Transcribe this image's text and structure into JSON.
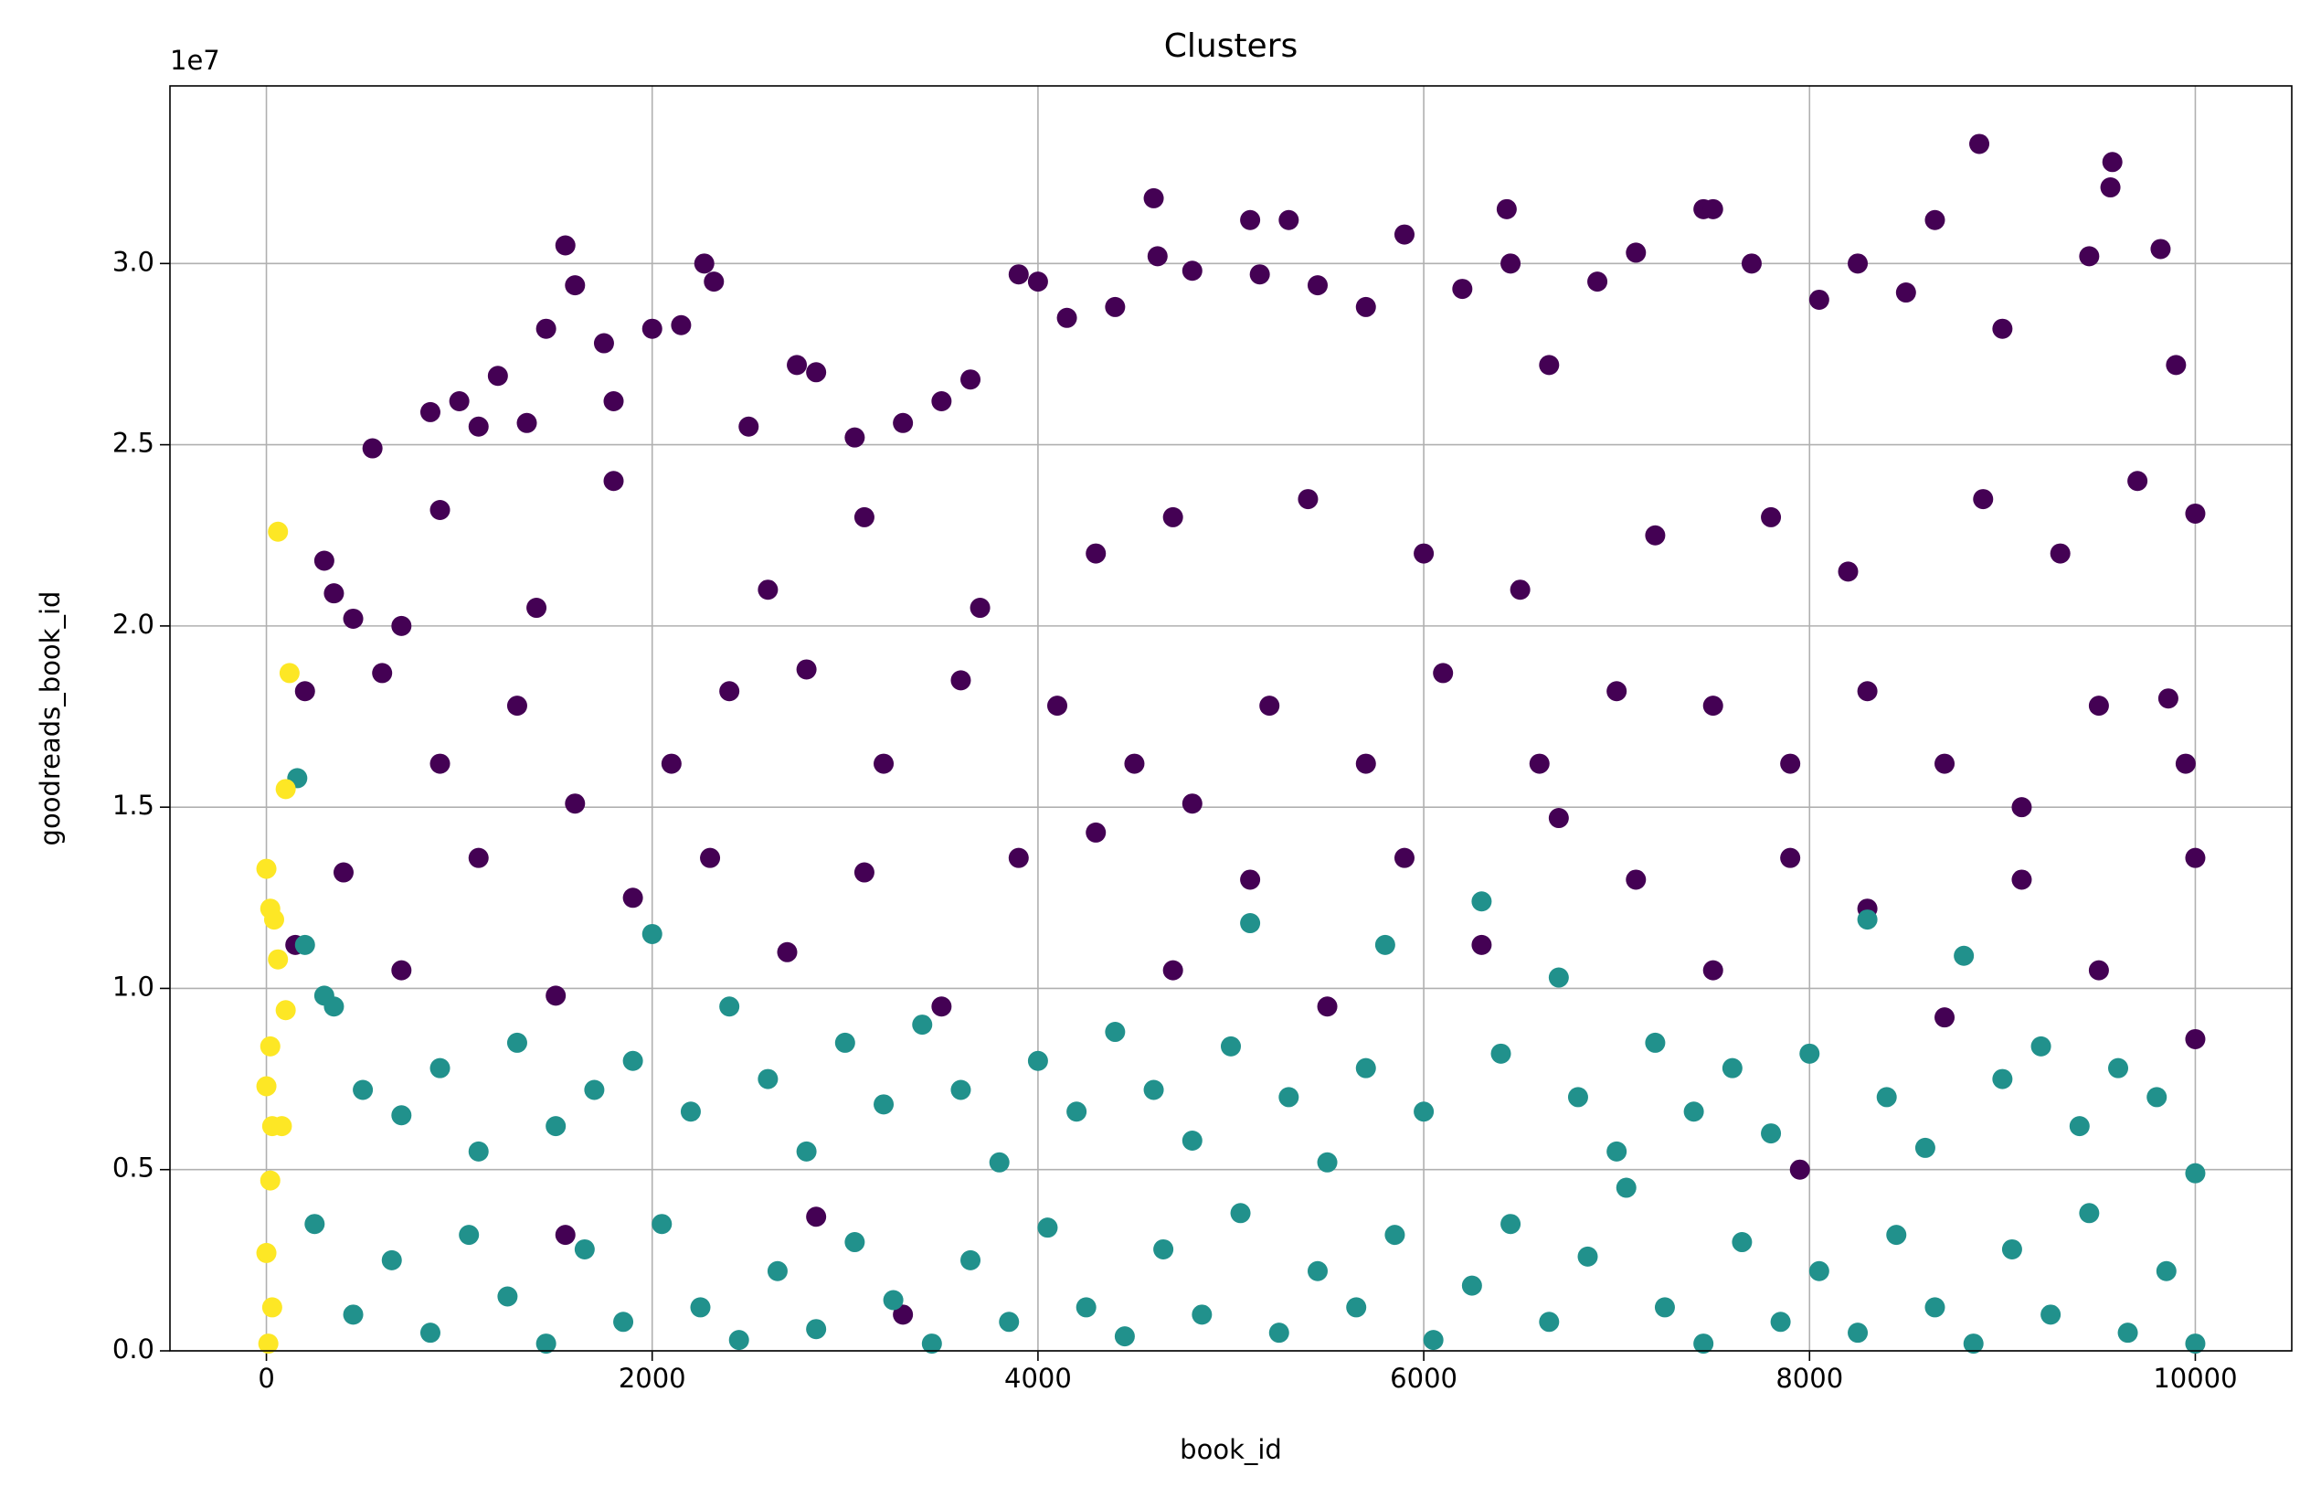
{
  "chart_data": {
    "type": "scatter",
    "title": "Clusters",
    "x_label": "book_id",
    "y_label": "goodreads_book_id",
    "y_offset_text": "1e7",
    "xlim": [
      -500,
      10500
    ],
    "xticks": [
      0,
      2000,
      4000,
      6000,
      8000,
      10000
    ],
    "ylim": [
      0,
      3.49
    ],
    "yticks": [
      {
        "value": 0,
        "label": "0.0"
      },
      0.5,
      {
        "value": 1,
        "label": "1.0"
      },
      1.5,
      {
        "value": 2,
        "label": "2.0"
      },
      2.5,
      {
        "value": 3,
        "label": "3.0"
      }
    ],
    "grid": true,
    "series": [
      {
        "color": "#440154",
        "x": [
          300,
          350,
          450,
          550,
          850,
          900,
          1000,
          1100,
          1200,
          1350,
          1450,
          1550,
          1600,
          1750,
          1800,
          2000,
          2150,
          2270,
          2320,
          2500,
          2750,
          2850,
          3050,
          3300,
          3500,
          3650,
          3900,
          4000,
          4150,
          4400,
          4600,
          4620,
          4800,
          5100,
          5150,
          5300,
          5450,
          5700,
          5900,
          6200,
          6430,
          6450,
          6650,
          6900,
          7100,
          7450,
          7500,
          7700,
          8050,
          8250,
          8500,
          8650,
          8880,
          9000,
          9450,
          9560,
          9570,
          9820,
          9900,
          200,
          600,
          900,
          1300,
          1600,
          2100,
          2400,
          2800,
          3200,
          3600,
          4100,
          4500,
          4800,
          5200,
          5700,
          6100,
          6600,
          7000,
          7500,
          7900,
          8300,
          8700,
          9100,
          9500,
          9950,
          150,
          400,
          700,
          1100,
          1500,
          1900,
          2300,
          2700,
          3100,
          3500,
          3900,
          4300,
          4700,
          5100,
          5500,
          5900,
          6300,
          6700,
          7100,
          7500,
          7900,
          8300,
          8700,
          9100,
          9500,
          10000,
          10000,
          9860,
          10000,
          7950,
          1550,
          3300,
          2850,
          700,
          1400,
          1800,
          2600,
          3100,
          3700,
          4300,
          4700,
          5400,
          6000,
          6500,
          7200,
          7800,
          8200,
          8900,
          9300,
          9700
        ],
        "values": [
          2.18,
          2.09,
          2.02,
          2.49,
          2.59,
          2.32,
          2.62,
          2.55,
          2.69,
          2.56,
          2.82,
          3.05,
          2.94,
          2.78,
          2.62,
          2.82,
          2.83,
          3.0,
          2.95,
          2.55,
          2.72,
          2.7,
          2.52,
          2.56,
          2.62,
          2.68,
          2.97,
          2.95,
          2.85,
          2.88,
          3.18,
          3.02,
          2.98,
          3.12,
          2.97,
          3.12,
          2.94,
          2.88,
          3.08,
          2.93,
          3.15,
          3.0,
          2.72,
          2.95,
          3.03,
          3.15,
          3.15,
          3.0,
          2.9,
          3.0,
          2.92,
          3.12,
          3.33,
          2.82,
          3.02,
          3.21,
          3.28,
          3.04,
          2.72,
          1.82,
          1.87,
          1.62,
          1.78,
          1.51,
          1.62,
          1.82,
          1.88,
          1.62,
          1.85,
          1.78,
          1.62,
          1.51,
          1.78,
          1.62,
          1.87,
          1.62,
          1.82,
          1.78,
          1.62,
          1.82,
          1.62,
          1.5,
          1.78,
          1.62,
          1.12,
          1.32,
          1.05,
          1.36,
          0.98,
          1.25,
          1.36,
          1.1,
          1.32,
          0.95,
          1.36,
          1.43,
          1.05,
          1.3,
          0.95,
          1.36,
          1.12,
          1.47,
          1.3,
          1.05,
          1.36,
          1.22,
          0.92,
          1.3,
          1.05,
          1.36,
          0.86,
          1.8,
          2.31,
          0.5,
          0.32,
          0.1,
          0.37,
          2.0,
          2.05,
          2.4,
          2.1,
          2.3,
          2.05,
          2.2,
          2.3,
          2.35,
          2.2,
          2.1,
          2.25,
          2.3,
          2.15,
          2.35,
          2.2,
          2.4
        ]
      },
      {
        "color": "#21918c",
        "x": [
          160,
          200,
          300,
          350,
          500,
          700,
          900,
          1100,
          1300,
          1500,
          1700,
          1900,
          2000,
          2200,
          2400,
          2600,
          2800,
          3000,
          3200,
          3400,
          3600,
          3800,
          4000,
          4200,
          4400,
          4600,
          4800,
          5000,
          5100,
          5300,
          5500,
          5700,
          5800,
          6000,
          6300,
          6400,
          6700,
          6800,
          7000,
          7200,
          7400,
          7600,
          7800,
          8000,
          8300,
          8400,
          8600,
          8800,
          9000,
          9200,
          9400,
          9600,
          9800,
          10000,
          250,
          450,
          650,
          850,
          1050,
          1250,
          1450,
          1650,
          1850,
          2050,
          2250,
          2450,
          2650,
          2850,
          3050,
          3250,
          3450,
          3650,
          3850,
          4050,
          4250,
          4450,
          4650,
          4850,
          5050,
          5250,
          5450,
          5650,
          5850,
          6050,
          6250,
          6450,
          6650,
          6850,
          7050,
          7250,
          7450,
          7650,
          7850,
          8050,
          8250,
          8450,
          8650,
          8850,
          9050,
          9250,
          9450,
          9650,
          9850,
          10000
        ],
        "values": [
          1.58,
          1.12,
          0.98,
          0.95,
          0.72,
          0.65,
          0.78,
          0.55,
          0.85,
          0.62,
          0.72,
          0.8,
          1.15,
          0.66,
          0.95,
          0.75,
          0.55,
          0.85,
          0.68,
          0.9,
          0.72,
          0.52,
          0.8,
          0.66,
          0.88,
          0.72,
          0.58,
          0.84,
          1.18,
          0.7,
          0.52,
          0.78,
          1.12,
          0.66,
          1.24,
          0.82,
          1.03,
          0.7,
          0.55,
          0.85,
          0.66,
          0.78,
          0.6,
          0.82,
          1.19,
          0.7,
          0.56,
          1.09,
          0.75,
          0.84,
          0.62,
          0.78,
          0.7,
          0.49,
          0.35,
          0.1,
          0.25,
          0.05,
          0.32,
          0.15,
          0.02,
          0.28,
          0.08,
          0.35,
          0.12,
          0.03,
          0.22,
          0.06,
          0.3,
          0.14,
          0.02,
          0.25,
          0.08,
          0.34,
          0.12,
          0.04,
          0.28,
          0.1,
          0.38,
          0.05,
          0.22,
          0.12,
          0.32,
          0.03,
          0.18,
          0.35,
          0.08,
          0.26,
          0.45,
          0.12,
          0.02,
          0.3,
          0.08,
          0.22,
          0.05,
          0.32,
          0.12,
          0.02,
          0.28,
          0.1,
          0.38,
          0.05,
          0.22,
          0.02
        ]
      },
      {
        "color": "#fde725",
        "x": [
          60,
          120,
          100,
          0,
          20,
          40,
          60,
          100,
          20,
          0,
          30,
          80,
          20,
          0,
          30,
          10
        ],
        "values": [
          2.26,
          1.87,
          1.55,
          1.33,
          1.22,
          1.19,
          1.08,
          0.94,
          0.84,
          0.73,
          0.62,
          0.62,
          0.47,
          0.27,
          0.12,
          0.02
        ]
      }
    ]
  }
}
